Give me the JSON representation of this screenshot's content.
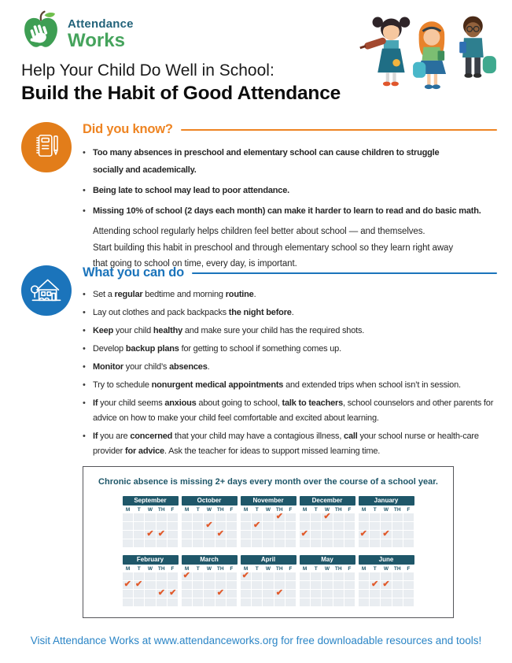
{
  "logo": {
    "line1": "Attendance",
    "line2": "Works"
  },
  "title": {
    "line1": "Help Your Child Do Well in School:",
    "line2": "Build the Habit of Good Attendance"
  },
  "icons": {
    "logo": "apple-hand-logo-icon",
    "header_illustration": "three-children-illustration",
    "section1": "notebook-pencil-icon",
    "section2": "school-house-icon",
    "calendar_mark": "absence-check-icon"
  },
  "did_you_know": {
    "heading": "Did you know?",
    "bullets": [
      [
        {
          "t": "Too many absences in preschool and elementary school can cause children to struggle",
          "b": true,
          "br": true
        },
        {
          "t": "socially and academically.",
          "b": true
        }
      ],
      [
        {
          "t": "Being late to school may lead to poor attendance.",
          "b": true
        }
      ],
      [
        {
          "t": "Missing 10% of school (2 days each month) can make it harder to learn to read and do basic math.",
          "b": true
        }
      ]
    ],
    "paragraph_lines": [
      "Attending school regularly helps children feel better about school — and themselves.",
      "Start building this habit in preschool and through elementary school so they learn right away",
      "that going to school on time, every day, is important."
    ]
  },
  "what_you_can_do": {
    "heading": "What you can do",
    "bullets": [
      [
        {
          "t": "Set a ",
          "b": false
        },
        {
          "t": "regular",
          "b": true
        },
        {
          "t": " bedtime and morning ",
          "b": false
        },
        {
          "t": "routine",
          "b": true
        },
        {
          "t": ".",
          "b": false
        }
      ],
      [
        {
          "t": "Lay out clothes and pack backpacks ",
          "b": false
        },
        {
          "t": "the night before",
          "b": true
        },
        {
          "t": ".",
          "b": false
        }
      ],
      [
        {
          "t": "Keep",
          "b": true
        },
        {
          "t": " your child ",
          "b": false
        },
        {
          "t": "healthy",
          "b": true
        },
        {
          "t": " and make sure your child has the required shots.",
          "b": false
        }
      ],
      [
        {
          "t": "Develop ",
          "b": false
        },
        {
          "t": "backup plans",
          "b": true
        },
        {
          "t": " for getting to school if something comes up.",
          "b": false
        }
      ],
      [
        {
          "t": "Monitor",
          "b": true
        },
        {
          "t": " your child’s ",
          "b": false
        },
        {
          "t": "absences",
          "b": true
        },
        {
          "t": ".",
          "b": false
        }
      ],
      [
        {
          "t": "Try to schedule ",
          "b": false
        },
        {
          "t": "nonurgent medical appointments",
          "b": true
        },
        {
          "t": " and extended trips when school isn’t in session.",
          "b": false
        }
      ],
      [
        {
          "t": "If",
          "b": true
        },
        {
          "t": " your child seems ",
          "b": false
        },
        {
          "t": "anxious",
          "b": true
        },
        {
          "t": " about going to school, ",
          "b": false
        },
        {
          "t": "talk to teachers",
          "b": true
        },
        {
          "t": ", school counselors and other parents for advice on how to make your child feel comfortable and excited about learning.",
          "b": false
        }
      ],
      [
        {
          "t": "If",
          "b": true
        },
        {
          "t": " you are ",
          "b": false
        },
        {
          "t": "concerned",
          "b": true
        },
        {
          "t": " that your child may have a contagious illness, ",
          "b": false
        },
        {
          "t": "call",
          "b": true
        },
        {
          "t": " your school nurse or health-care provider ",
          "b": false
        },
        {
          "t": "for advice",
          "b": true
        },
        {
          "t": ". Ask the teacher for ideas to support missed learning time.",
          "b": false
        }
      ]
    ]
  },
  "calendar_box": {
    "title": "Chronic absence is missing 2+ days every month over the course of a school year.",
    "day_labels": [
      "M",
      "T",
      "W",
      "TH",
      "F"
    ],
    "weeks": 4,
    "check_glyph": "✔",
    "months": [
      {
        "name": "September",
        "checks": [
          [
            2,
            2
          ],
          [
            2,
            3
          ]
        ]
      },
      {
        "name": "October",
        "checks": [
          [
            1,
            2
          ],
          [
            2,
            3
          ]
        ]
      },
      {
        "name": "November",
        "checks": [
          [
            0,
            3
          ],
          [
            1,
            1
          ]
        ]
      },
      {
        "name": "December",
        "checks": [
          [
            0,
            2
          ],
          [
            2,
            0
          ]
        ]
      },
      {
        "name": "January",
        "checks": [
          [
            2,
            0
          ],
          [
            2,
            2
          ]
        ]
      },
      {
        "name": "February",
        "checks": [
          [
            1,
            0
          ],
          [
            1,
            1
          ],
          [
            2,
            3
          ],
          [
            2,
            4
          ]
        ]
      },
      {
        "name": "March",
        "checks": [
          [
            0,
            0
          ],
          [
            2,
            3
          ]
        ]
      },
      {
        "name": "April",
        "checks": [
          [
            0,
            0
          ],
          [
            2,
            3
          ]
        ]
      },
      {
        "name": "May",
        "checks": []
      },
      {
        "name": "June",
        "checks": [
          [
            1,
            1
          ],
          [
            1,
            2
          ]
        ]
      }
    ]
  },
  "footer": {
    "text": "Visit Attendance Works at www.attendanceworks.org for free downloadable resources and tools!"
  },
  "colors": {
    "orange": "#EE8422",
    "orange_dark": "#E27D1A",
    "blue": "#1B74BB",
    "teal_dark": "#1F5769",
    "teal_logo": "#23637A",
    "green": "#45A35C",
    "check_red": "#E15A2B",
    "footer_blue": "#2B85C6",
    "text": "#262626"
  }
}
